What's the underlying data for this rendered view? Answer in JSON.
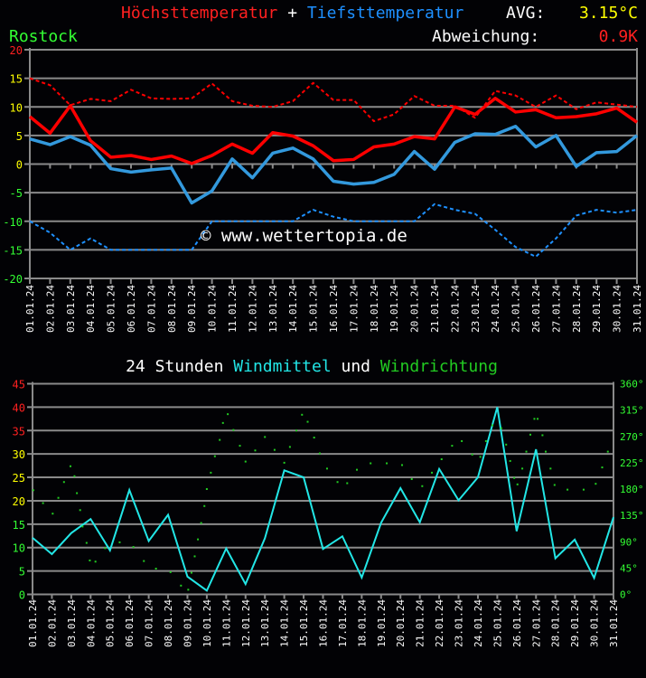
{
  "header": {
    "title_max": "Höchsttemperatur",
    "title_plus": " + ",
    "title_min": "Tiefsttemperatur",
    "avg_label": "AVG:",
    "avg_value": "3.15°C",
    "location": "Rostock",
    "deviation_label": "Abweichung:",
    "deviation_value": "0.9K"
  },
  "watermark": "© www.wettertopia.de",
  "colors": {
    "background": "#020205",
    "max": "#ff0000",
    "min": "#3399dd",
    "wind": "#22e6e6",
    "direction": "#22cc22",
    "label_red": "#ff2020",
    "label_yellow": "#ffff00",
    "label_green": "#33ff33",
    "grid": "#8a8a8a"
  },
  "dates": [
    "01.01.24",
    "02.01.24",
    "03.01.24",
    "04.01.24",
    "05.01.24",
    "06.01.24",
    "07.01.24",
    "08.01.24",
    "09.01.24",
    "10.01.24",
    "11.01.24",
    "12.01.24",
    "13.01.24",
    "14.01.24",
    "15.01.24",
    "16.01.24",
    "17.01.24",
    "18.01.24",
    "19.01.24",
    "20.01.24",
    "21.01.24",
    "22.01.24",
    "23.01.24",
    "24.01.24",
    "25.01.24",
    "26.01.24",
    "27.01.24",
    "28.01.24",
    "29.01.24",
    "30.01.24",
    "31.01.24"
  ],
  "chart_data": [
    {
      "type": "line",
      "title": "Höchsttemperatur + Tiefsttemperatur",
      "ylim": [
        -20,
        20
      ],
      "yticks": [
        20,
        15,
        10,
        5,
        0,
        -5,
        -10,
        -15,
        -20
      ],
      "grid": true,
      "series": [
        {
          "name": "Höchsttemperatur",
          "style": "solid",
          "color": "#ff0000",
          "values": [
            8.3,
            5.4,
            10.2,
            4.1,
            1.2,
            1.5,
            0.8,
            1.4,
            0.1,
            1.5,
            3.5,
            1.9,
            5.5,
            4.9,
            3.2,
            0.6,
            0.8,
            3.0,
            3.5,
            4.8,
            4.4,
            10.0,
            8.7,
            11.5,
            9.1,
            9.5,
            8.1,
            8.3,
            8.8,
            9.8,
            7.3
          ]
        },
        {
          "name": "Tiefsttemperatur",
          "style": "solid",
          "color": "#3399dd",
          "values": [
            4.4,
            3.4,
            4.8,
            3.3,
            -0.8,
            -1.4,
            -1.0,
            -0.7,
            -6.8,
            -4.7,
            0.9,
            -2.4,
            1.9,
            2.8,
            0.9,
            -3.0,
            -3.5,
            -3.2,
            -1.8,
            2.2,
            -0.9,
            3.8,
            5.3,
            5.2,
            6.6,
            3.0,
            5.0,
            -0.4,
            2.0,
            2.2,
            5.0
          ]
        },
        {
          "style": "dashed",
          "color": "#ff0000",
          "values": [
            15.0,
            13.8,
            10.3,
            11.4,
            11.0,
            13.0,
            11.5,
            11.4,
            11.5,
            14.1,
            11.0,
            10.2,
            10.0,
            11.0,
            14.2,
            11.2,
            11.2,
            7.5,
            8.7,
            11.9,
            10.2,
            10.2,
            8.1,
            12.8,
            12.0,
            10.0,
            12.0,
            9.6,
            10.8,
            10.4,
            10.0
          ]
        },
        {
          "style": "dashed",
          "color": "#1e90ff",
          "values": [
            -10,
            -12,
            -15,
            -13,
            -15,
            -15,
            -15,
            -15,
            -15,
            -10,
            -10,
            -10,
            -10,
            -10,
            -8,
            -9.2,
            -10,
            -10,
            -10,
            -10,
            -7,
            -8,
            -8.7,
            -11.5,
            -14.5,
            -16.2,
            -13,
            -9,
            -8,
            -8.5,
            -8
          ]
        }
      ]
    },
    {
      "type": "line+scatter",
      "title_parts": [
        "24 Stunden ",
        "Windmittel",
        " und ",
        "Windrichtung"
      ],
      "ylim": [
        0,
        45
      ],
      "yticks": [
        45,
        40,
        35,
        30,
        25,
        20,
        15,
        10,
        5,
        0
      ],
      "y2lim": [
        0,
        360
      ],
      "y2ticks": [
        "360°",
        "315°",
        "270°",
        "225°",
        "180°",
        "135°",
        "90°",
        "45°",
        "0°"
      ],
      "grid": true,
      "series": [
        {
          "name": "Windmittel",
          "type": "line",
          "color": "#22e6e6",
          "values": [
            12.1,
            8.6,
            13.1,
            16.1,
            9.4,
            22.3,
            11.4,
            17.0,
            3.8,
            0.8,
            9.8,
            2.2,
            12.0,
            26.5,
            25.0,
            9.7,
            12.4,
            3.6,
            15.3,
            22.7,
            15.4,
            26.8,
            20.1,
            25.0,
            40.0,
            13.5,
            31.0,
            7.7,
            11.7,
            3.5,
            16.5
          ]
        },
        {
          "name": "Windrichtung",
          "type": "scatter",
          "axis": "y2",
          "color": "#22cc22",
          "points": [
            [
              "01.01 01:00",
              178
            ],
            [
              "01.01 13:00",
              156
            ],
            [
              "02.01 01:00",
              138
            ],
            [
              "02.01 08:00",
              165
            ],
            [
              "02.01 15:00",
              192
            ],
            [
              "02.01 23:00",
              219
            ],
            [
              "03.01 04:00",
              202
            ],
            [
              "03.01 07:00",
              173
            ],
            [
              "03.01 11:00",
              144
            ],
            [
              "03.01 14:00",
              116
            ],
            [
              "03.01 19:00",
              88
            ],
            [
              "03.01 23:00",
              58
            ],
            [
              "04.01 06:00",
              56
            ],
            [
              "04.01 18:00",
              79
            ],
            [
              "05.01 12:00",
              89
            ],
            [
              "06.01 05:00",
              81
            ],
            [
              "06.01 18:00",
              57
            ],
            [
              "07.01 09:00",
              44
            ],
            [
              "08.01 03:00",
              38
            ],
            [
              "08.01 16:00",
              15
            ],
            [
              "09.01 01:00",
              8
            ],
            [
              "09.01 05:00",
              37
            ],
            [
              "09.01 09:00",
              65
            ],
            [
              "09.01 13:00",
              94
            ],
            [
              "09.01 17:00",
              122
            ],
            [
              "09.01 21:00",
              151
            ],
            [
              "10.01 00:00",
              180
            ],
            [
              "10.01 05:00",
              208
            ],
            [
              "10.01 10:00",
              236
            ],
            [
              "10.01 16:00",
              264
            ],
            [
              "10.01 20:00",
              293
            ],
            [
              "11.01 02:00",
              308
            ],
            [
              "11.01 09:00",
              281
            ],
            [
              "11.01 17:00",
              254
            ],
            [
              "12.01 00:00",
              227
            ],
            [
              "12.01 12:00",
              246
            ],
            [
              "13.01 00:00",
              269
            ],
            [
              "13.01 12:00",
              247
            ],
            [
              "14.01 00:00",
              225
            ],
            [
              "14.01 07:00",
              252
            ],
            [
              "14.01 15:00",
              280
            ],
            [
              "14.01 22:00",
              307
            ],
            [
              "15.01 05:00",
              295
            ],
            [
              "15.01 13:00",
              268
            ],
            [
              "15.01 20:00",
              241
            ],
            [
              "16.01 05:00",
              215
            ],
            [
              "16.01 18:00",
              192
            ],
            [
              "17.01 06:00",
              190
            ],
            [
              "17.01 18:00",
              213
            ],
            [
              "18.01 11:00",
              224
            ],
            [
              "19.01 07:00",
              224
            ],
            [
              "20.01 02:00",
              221
            ],
            [
              "20.01 14:00",
              197
            ],
            [
              "21.01 03:00",
              185
            ],
            [
              "21.01 15:00",
              208
            ],
            [
              "22.01 03:00",
              231
            ],
            [
              "22.01 16:00",
              254
            ],
            [
              "23.01 04:00",
              262
            ],
            [
              "23.01 17:00",
              239
            ],
            [
              "24.01 03:00",
              235
            ],
            [
              "24.01 10:00",
              262
            ],
            [
              "24.01 18:00",
              289
            ],
            [
              "25.01 05:00",
              284
            ],
            [
              "25.01 11:00",
              256
            ],
            [
              "25.01 16:00",
              228
            ],
            [
              "25.01 21:00",
              199
            ],
            [
              "26.01 01:00",
              188
            ],
            [
              "26.01 07:00",
              215
            ],
            [
              "26.01 12:00",
              244
            ],
            [
              "26.01 17:00",
              273
            ],
            [
              "26.01 22:00",
              300
            ],
            [
              "27.01 02:00",
              300
            ],
            [
              "27.01 08:00",
              272
            ],
            [
              "27.01 12:00",
              244
            ],
            [
              "27.01 18:00",
              215
            ],
            [
              "27.01 23:00",
              187
            ],
            [
              "28.01 15:00",
              179
            ],
            [
              "29.01 11:00",
              179
            ],
            [
              "30.01 02:00",
              189
            ],
            [
              "30.01 10:00",
              217
            ],
            [
              "30.01 17:00",
              244
            ]
          ]
        }
      ]
    }
  ]
}
